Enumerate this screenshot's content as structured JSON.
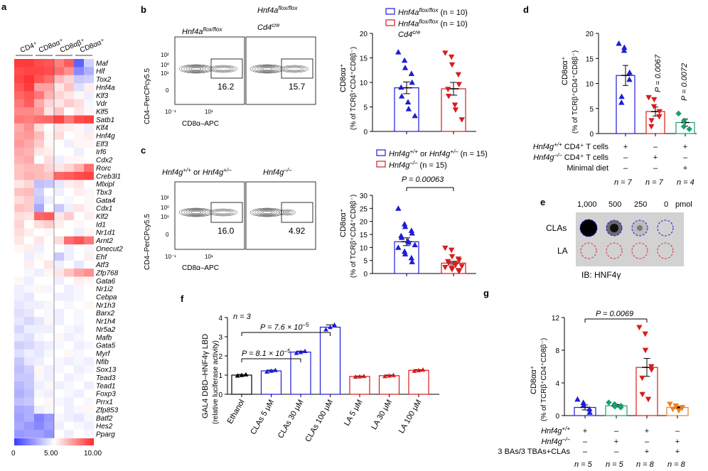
{
  "panels": {
    "a": {
      "letter": "a",
      "columns": [
        "CD4⁺",
        "CD8αα⁺",
        "CD8αβ⁺",
        "CD8αα⁺"
      ],
      "genes": [
        "Maf",
        "Hlf",
        "Tox2",
        "Hnf4a",
        "Klf3",
        "Vdr",
        "Klf5",
        "Satb1",
        "Klf4",
        "Hnf4g",
        "Elf3",
        "Irf6",
        "Cdx2",
        "Rorc",
        "Creb3l1",
        "Mlxipl",
        "Tbx3",
        "Gata4",
        "Cdx1",
        "Klf2",
        "Id1",
        "Nr1d1",
        "Arnt2",
        "Onecut2",
        "Ehf",
        "Atf3",
        "Zfp768",
        "Gata6",
        "Nr1i2",
        "Cebpa",
        "Nr1h3",
        "Barx2",
        "Nr1h4",
        "Nr5a2",
        "Mafb",
        "Gata5",
        "Myrf",
        "Nfib",
        "Sox13",
        "Tead3",
        "Tead1",
        "Foxp3",
        "Prrx1",
        "Zfp853",
        "Batf2",
        "Hes2",
        "Pparg"
      ],
      "scale_labels": [
        "0",
        "5.00",
        "10.00"
      ],
      "colors": {
        "low": "#3a3aff",
        "mid": "#ffffff",
        "high": "#ff2a2a"
      }
    },
    "b": {
      "letter": "b",
      "flow_titles": [
        "Hnf4a",
        "flox/flox",
        "Hnf4a",
        "flox/flox",
        "Cd4",
        "cre"
      ],
      "gate_values": [
        "16.2",
        "15.7"
      ],
      "y_axis_label": "CD4–PerCPcy5.5",
      "x_axis_label": "CD8α–APC",
      "ticks": [
        "10⁰",
        "10¹",
        "10²",
        "0",
        "10⁻¹",
        "10¹"
      ],
      "legend": [
        {
          "gene": "Hnf4a",
          "sup": "flox/flox",
          "n": "(n = 10)"
        },
        {
          "gene": "Hnf4a",
          "sup": "flox/flox",
          "n": "(n = 10)",
          "line2": "Cd4",
          "line2_sup": "cre"
        }
      ],
      "ylabel1": "CD8αα⁺",
      "ylabel2": "(% of TCRβ⁺CD4⁺CD8β⁻)",
      "yticks": [
        "0",
        "5",
        "10",
        "15",
        "20"
      ]
    },
    "c": {
      "letter": "c",
      "flow_titles": [
        "Hnf4g",
        "+/+",
        "or",
        "+/–",
        "–/–"
      ],
      "gate_values": [
        "16.0",
        "4.92"
      ],
      "legend": [
        {
          "text": "Hnf4g",
          "sup": "+/+",
          "mid": "or",
          "n": "(n = 15)"
        },
        {
          "text": "Hnf4g",
          "sup": "–/–",
          "n": "(n = 15)"
        }
      ],
      "pvalue": "P = 0.00063",
      "yticks": [
        "0",
        "5",
        "10",
        "15",
        "20",
        "25",
        "30"
      ]
    },
    "d": {
      "letter": "d",
      "pvalues": [
        "P = 0.0067",
        "P = 0.0072"
      ],
      "yticks": [
        "0",
        "5",
        "10",
        "15",
        "20"
      ],
      "rows": [
        {
          "label": "CD4⁺ T cells",
          "gene": "Hnf4g",
          "sup": "+/+",
          "marks": [
            "+",
            "–",
            "+"
          ]
        },
        {
          "label": "CD4⁺ T cells",
          "gene": "Hnf4g",
          "sup": "–/–",
          "marks": [
            "–",
            "+",
            "–"
          ]
        },
        {
          "label": "Minimal diet",
          "marks": [
            "–",
            "–",
            "+"
          ]
        }
      ],
      "n_labels": [
        "n = 7",
        "n = 7",
        "n = 4"
      ]
    },
    "e": {
      "letter": "e",
      "amounts": [
        "1,000",
        "500",
        "250",
        "0",
        "pmol"
      ],
      "rows": [
        "CLAs",
        "LA"
      ],
      "caption": "IB: HNF4γ"
    },
    "f": {
      "letter": "f",
      "n_note": "n = 3",
      "pvalues": [
        "P = 8.1 × 10",
        "−5",
        "P = 7.6 × 10",
        "−5"
      ],
      "ylabel1": "GAL4 DBD–HNF4γ LBD",
      "ylabel2": "(relative luciferase activity)",
      "yticks": [
        "0",
        "1",
        "2",
        "3",
        "4"
      ]
    },
    "g": {
      "letter": "g",
      "pvalue": "P = 0.0069",
      "yticks": [
        "0",
        "4",
        "8",
        "12"
      ],
      "rows": [
        {
          "gene": "Hnf4g",
          "sup": "+/+",
          "marks": [
            "+",
            "–",
            "+",
            "–"
          ]
        },
        {
          "gene": "Hnf4g",
          "sup": "–/–",
          "marks": [
            "–",
            "+",
            "–",
            "+"
          ]
        },
        {
          "label": "3 BAs/3 TBAs+CLAs",
          "marks": [
            "–",
            "–",
            "+",
            "+"
          ]
        }
      ],
      "n_labels": [
        "n = 5",
        "n = 5",
        "n = 8",
        "n = 8"
      ]
    }
  },
  "chart_data": [
    {
      "type": "heatmap",
      "panel": "a",
      "columns": [
        "CD4⁺",
        "CD8αα⁺",
        "CD8αβ⁺",
        "CD8αα⁺"
      ],
      "n_samples": 8,
      "scale": [
        0,
        10
      ],
      "values": [
        [
          9.6,
          9.6,
          9.2,
          9.0,
          8.0,
          8.8,
          1.0,
          3.8
        ],
        [
          9.2,
          9.4,
          9.4,
          9.2,
          8.4,
          7.6,
          2.0,
          3.0
        ],
        [
          9.4,
          9.8,
          9.0,
          8.4,
          6.6,
          6.0,
          3.6,
          3.8
        ],
        [
          9.0,
          9.6,
          7.2,
          7.2,
          5.6,
          6.4,
          4.2,
          5.4
        ],
        [
          8.6,
          9.0,
          8.2,
          6.8,
          6.0,
          5.6,
          5.2,
          4.6
        ],
        [
          8.2,
          8.8,
          7.0,
          6.0,
          5.6,
          6.2,
          5.8,
          4.8
        ],
        [
          7.8,
          7.8,
          7.4,
          5.6,
          6.4,
          5.0,
          5.6,
          5.2
        ],
        [
          8.2,
          8.0,
          8.4,
          8.6,
          9.4,
          8.2,
          9.2,
          9.4
        ],
        [
          7.0,
          7.6,
          5.8,
          5.0,
          5.6,
          5.4,
          5.2,
          4.6
        ],
        [
          7.2,
          7.4,
          6.6,
          5.2,
          5.8,
          5.0,
          5.2,
          5.4
        ],
        [
          7.4,
          7.0,
          6.2,
          5.2,
          5.0,
          4.6,
          5.2,
          5.2
        ],
        [
          7.0,
          6.8,
          5.6,
          5.4,
          5.0,
          5.0,
          4.6,
          5.0
        ],
        [
          6.8,
          7.0,
          5.0,
          5.8,
          4.6,
          5.2,
          5.2,
          5.0
        ],
        [
          6.4,
          6.6,
          6.6,
          6.0,
          5.6,
          6.0,
          6.8,
          8.4
        ],
        [
          6.4,
          6.8,
          6.6,
          6.4,
          8.6,
          8.8,
          9.2,
          9.4
        ],
        [
          5.6,
          6.0,
          3.4,
          3.6,
          4.4,
          5.4,
          5.6,
          5.0
        ],
        [
          6.4,
          6.6,
          3.8,
          5.0,
          4.6,
          5.0,
          5.4,
          5.2
        ],
        [
          5.8,
          6.2,
          3.6,
          4.6,
          5.0,
          4.8,
          5.0,
          5.2
        ],
        [
          6.4,
          6.2,
          2.8,
          5.0,
          3.6,
          4.6,
          5.6,
          5.2
        ],
        [
          5.8,
          5.6,
          8.6,
          8.8,
          5.6,
          6.2,
          5.0,
          5.4
        ],
        [
          6.0,
          5.0,
          5.8,
          6.2,
          5.4,
          5.0,
          5.2,
          5.0
        ],
        [
          5.8,
          5.4,
          5.0,
          5.2,
          5.0,
          5.0,
          4.6,
          5.2
        ],
        [
          5.6,
          5.0,
          5.6,
          5.0,
          5.8,
          8.4,
          9.0,
          8.2
        ],
        [
          5.2,
          5.4,
          4.6,
          5.0,
          5.0,
          4.6,
          5.0,
          4.8
        ],
        [
          5.0,
          4.6,
          5.2,
          5.0,
          3.6,
          4.6,
          5.0,
          5.4
        ],
        [
          5.0,
          5.4,
          5.0,
          5.6,
          4.6,
          5.0,
          4.4,
          5.0
        ],
        [
          5.0,
          4.8,
          4.6,
          5.2,
          5.6,
          6.4,
          7.2,
          7.6
        ],
        [
          5.2,
          4.6,
          5.0,
          5.0,
          4.6,
          5.0,
          5.4,
          5.2
        ],
        [
          4.6,
          4.8,
          5.2,
          4.8,
          5.0,
          4.6,
          4.8,
          5.0
        ],
        [
          4.6,
          4.4,
          5.0,
          5.0,
          4.6,
          4.6,
          4.8,
          5.0
        ],
        [
          4.4,
          4.6,
          4.6,
          4.8,
          5.0,
          4.8,
          5.0,
          5.2
        ],
        [
          4.2,
          4.4,
          5.0,
          4.8,
          4.6,
          5.0,
          4.8,
          5.0
        ],
        [
          4.4,
          4.0,
          4.4,
          5.2,
          4.6,
          5.0,
          4.8,
          5.0
        ],
        [
          4.0,
          4.6,
          4.6,
          4.6,
          5.0,
          4.8,
          4.6,
          5.0
        ],
        [
          4.4,
          4.2,
          4.8,
          5.0,
          5.2,
          4.6,
          4.8,
          5.0
        ],
        [
          3.8,
          4.0,
          4.4,
          4.6,
          4.8,
          5.0,
          4.6,
          4.8
        ],
        [
          4.2,
          4.6,
          4.4,
          4.8,
          5.0,
          5.2,
          4.8,
          5.0
        ],
        [
          3.6,
          4.4,
          4.6,
          5.0,
          4.8,
          4.6,
          4.8,
          4.6
        ],
        [
          3.4,
          3.8,
          5.2,
          4.6,
          4.8,
          5.0,
          4.6,
          4.8
        ],
        [
          3.6,
          3.6,
          4.8,
          4.6,
          5.0,
          4.6,
          4.8,
          5.0
        ],
        [
          3.2,
          3.6,
          4.6,
          5.2,
          4.6,
          4.8,
          5.0,
          4.6
        ],
        [
          3.0,
          3.4,
          4.8,
          4.6,
          5.0,
          4.8,
          4.6,
          5.0
        ],
        [
          3.4,
          3.6,
          5.0,
          5.2,
          4.8,
          4.6,
          5.0,
          4.8
        ],
        [
          2.8,
          3.0,
          4.6,
          4.8,
          5.0,
          4.6,
          4.8,
          5.2
        ],
        [
          2.6,
          3.0,
          1.8,
          2.4,
          4.8,
          4.6,
          4.4,
          4.8
        ],
        [
          2.8,
          2.4,
          2.0,
          2.6,
          4.6,
          5.0,
          4.8,
          4.6
        ],
        [
          2.4,
          2.6,
          2.6,
          2.2,
          5.0,
          4.6,
          5.0,
          4.8
        ]
      ]
    },
    {
      "type": "bar",
      "panel": "b",
      "ylabel": "CD8αα⁺ (% of TCRβ⁺CD4⁺CD8β⁻)",
      "ylim": [
        0,
        20
      ],
      "series": [
        {
          "name": "Hnf4a flox/flox (n = 10)",
          "mean": 8.9,
          "sem": 1.2,
          "points": [
            16.2,
            14.5,
            13.0,
            11.8,
            10.0,
            9.0,
            7.2,
            6.0,
            4.6,
            3.2
          ],
          "color": "#1c1cd8",
          "marker": "triangle-up"
        },
        {
          "name": "Hnf4a flox/flox Cd4 cre (n = 10)",
          "mean": 8.7,
          "sem": 1.3,
          "points": [
            16.0,
            15.2,
            13.6,
            11.6,
            9.6,
            8.6,
            7.2,
            5.4,
            4.4,
            2.4
          ],
          "color": "#d81c1c",
          "marker": "triangle-down"
        }
      ]
    },
    {
      "type": "bar",
      "panel": "c",
      "ylabel": "CD8αα⁺ (% of TCRβ⁺CD4⁺CD8β⁻)",
      "ylim": [
        0,
        30
      ],
      "series": [
        {
          "name": "Hnf4g+/+ or Hnf4g+/– (n = 15)",
          "mean": 12.2,
          "sem": 1.5,
          "points": [
            25.0,
            19.0,
            18.0,
            16.5,
            15.5,
            14.5,
            13.8,
            12.5,
            12.0,
            11.0,
            10.0,
            8.5,
            7.5,
            6.0,
            4.5
          ],
          "color": "#1c1cd8",
          "marker": "triangle-up"
        },
        {
          "name": "Hnf4g–/– (n = 15)",
          "mean": 4.0,
          "sem": 0.7,
          "points": [
            9.8,
            9.0,
            6.5,
            5.6,
            5.0,
            4.6,
            4.0,
            3.8,
            3.2,
            2.8,
            2.4,
            2.0,
            1.6,
            1.2,
            0.8
          ],
          "color": "#d81c1c",
          "marker": "triangle-down"
        }
      ]
    },
    {
      "type": "bar",
      "panel": "d",
      "ylim": [
        0,
        20
      ],
      "series": [
        {
          "mean": 11.6,
          "sem": 2.0,
          "points": [
            18.0,
            17.2,
            16.6,
            12.2,
            10.8,
            7.4,
            6.2
          ],
          "color": "#1c1cd8",
          "marker": "triangle-up"
        },
        {
          "mean": 4.4,
          "sem": 0.9,
          "points": [
            7.2,
            6.8,
            5.4,
            4.4,
            3.4,
            2.6,
            1.4
          ],
          "color": "#d81c1c",
          "marker": "triangle-down"
        },
        {
          "mean": 2.2,
          "sem": 0.7,
          "points": [
            4.0,
            2.6,
            1.4,
            0.9
          ],
          "color": "#1a9e6a",
          "marker": "diamond"
        }
      ]
    },
    {
      "type": "bar",
      "panel": "f",
      "ylabel": "GAL4 DBD–HNF4γ LBD (relative luciferase activity)",
      "ylim": [
        0,
        4
      ],
      "categories": [
        "Ethanol",
        "CLAs 5 μM",
        "CLAs 30 μM",
        "CLAs 100 μM",
        "LA 5 μM",
        "LA 30 μM",
        "LA 100 μM"
      ],
      "values": [
        1.0,
        1.22,
        2.2,
        3.5,
        0.93,
        0.97,
        1.25
      ],
      "sem": [
        0.03,
        0.04,
        0.05,
        0.12,
        0.02,
        0.03,
        0.03
      ],
      "colors": [
        "#000000",
        "#1c1cd8",
        "#1c1cd8",
        "#1c1cd8",
        "#d81c1c",
        "#d81c1c",
        "#d81c1c"
      ]
    },
    {
      "type": "bar",
      "panel": "g",
      "ylabel": "CD8αα⁺ (% of TCRβ⁺CD4⁺CD8β⁻)",
      "ylim": [
        0,
        12
      ],
      "series": [
        {
          "mean": 1.0,
          "sem": 0.3,
          "points": [
            2.0,
            1.6,
            1.3,
            0.8,
            0.4
          ],
          "color": "#1c1cd8",
          "marker": "triangle-up"
        },
        {
          "mean": 1.2,
          "sem": 0.15,
          "points": [
            1.6,
            1.4,
            1.1,
            1.0,
            1.2
          ],
          "color": "#1a9e6a",
          "marker": "diamond"
        },
        {
          "mean": 5.9,
          "sem": 1.1,
          "points": [
            10.8,
            10.0,
            8.0,
            6.0,
            5.6,
            4.6,
            2.6,
            2.0
          ],
          "color": "#d81c1c",
          "marker": "triangle-down"
        },
        {
          "mean": 1.0,
          "sem": 0.1,
          "points": [
            1.4,
            1.2,
            1.1,
            1.0,
            0.9,
            0.8,
            0.8,
            0.6
          ],
          "color": "#f08020",
          "marker": "triangle-down"
        }
      ]
    }
  ]
}
